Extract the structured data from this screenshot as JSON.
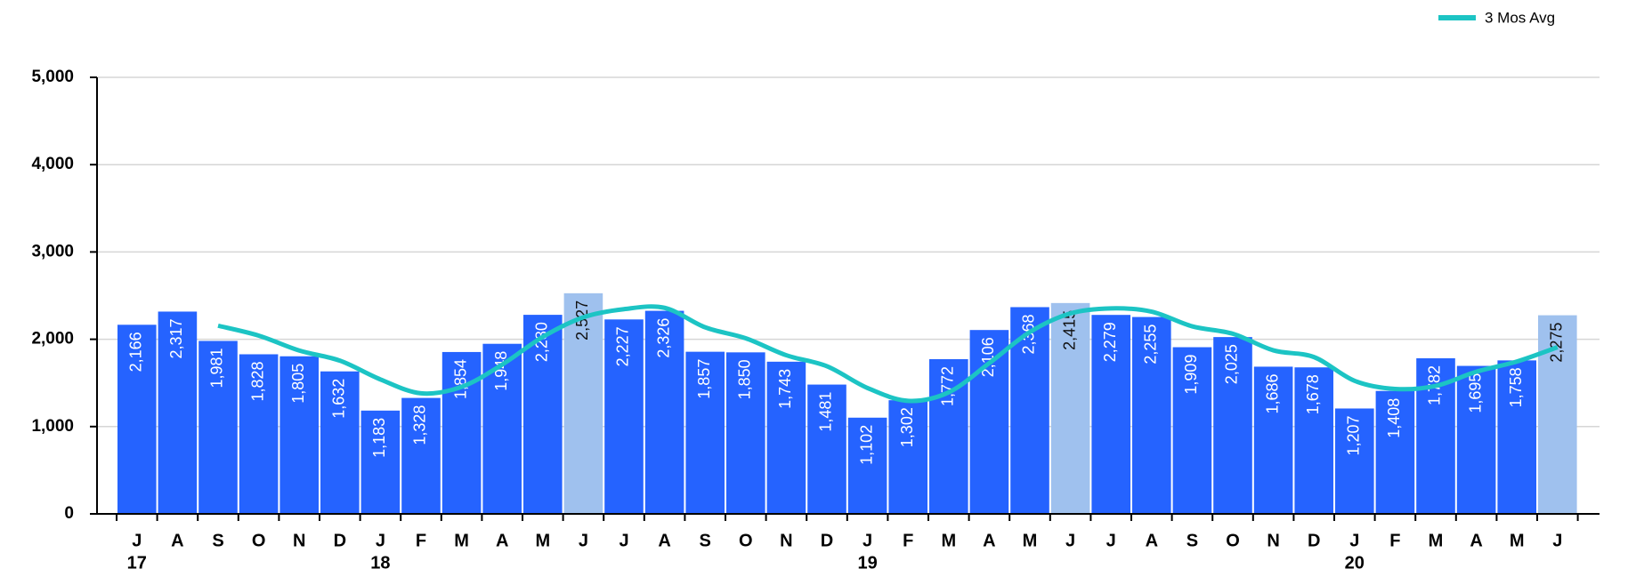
{
  "chart_data": {
    "type": "bar",
    "categories": [
      "J",
      "A",
      "S",
      "O",
      "N",
      "D",
      "J",
      "F",
      "M",
      "A",
      "M",
      "J",
      "J",
      "A",
      "S",
      "O",
      "N",
      "D",
      "J",
      "F",
      "M",
      "A",
      "M",
      "J",
      "J",
      "A",
      "S",
      "O",
      "N",
      "D",
      "J",
      "F",
      "M",
      "A",
      "M",
      "J"
    ],
    "year_labels": [
      "17",
      null,
      null,
      null,
      null,
      null,
      "18",
      null,
      null,
      null,
      null,
      null,
      null,
      null,
      null,
      null,
      null,
      null,
      "19",
      null,
      null,
      null,
      null,
      null,
      null,
      null,
      null,
      null,
      null,
      null,
      "20",
      null,
      null,
      null,
      null,
      null
    ],
    "values": [
      2166,
      2317,
      1981,
      1828,
      1805,
      1632,
      1183,
      1328,
      1854,
      1948,
      2280,
      2527,
      2227,
      2326,
      1857,
      1850,
      1743,
      1481,
      1102,
      1302,
      1772,
      2106,
      2368,
      2415,
      2279,
      2255,
      1909,
      2025,
      1686,
      1678,
      1207,
      1408,
      1782,
      1695,
      1758,
      2275
    ],
    "value_labels": [
      "2,166",
      "2,317",
      "1,981",
      "1,828",
      "1,805",
      "1,632",
      "1,183",
      "1,328",
      "1,854",
      "1,948",
      "2,280",
      "2,527",
      "2,227",
      "2,326",
      "1,857",
      "1,850",
      "1,743",
      "1,481",
      "1,102",
      "1,302",
      "1,772",
      "2,106",
      "2,368",
      "2,415",
      "2,279",
      "2,255",
      "1,909",
      "2,025",
      "1,686",
      "1,678",
      "1,207",
      "1,408",
      "1,782",
      "1,695",
      "1,758",
      "2,275"
    ],
    "color": "#2563ff",
    "highlight_color": "#9fc1ee",
    "highlight_indices": [
      11,
      23,
      35
    ],
    "line_series": {
      "name": "3 Mos Avg",
      "color": "#1cc4c4",
      "values": [
        null,
        null,
        2155,
        2042,
        1871,
        1755,
        1540,
        1381,
        1455,
        1710,
        2027,
        2252,
        2345,
        2360,
        2137,
        2011,
        1817,
        1691,
        1442,
        1295,
        1392,
        1727,
        2082,
        2296,
        2354,
        2316,
        2148,
        2063,
        1873,
        1796,
        1524,
        1431,
        1466,
        1628,
        1745,
        1909
      ]
    },
    "ylim": [
      0,
      5000
    ],
    "yticks": [
      0,
      {
        "value": 1000,
        "label": "1,000"
      },
      {
        "value": 2000,
        "label": "2,000"
      },
      {
        "value": 3000,
        "label": "3,000"
      },
      {
        "value": 4000,
        "label": "4,000"
      },
      {
        "value": 5000,
        "label": "5,000"
      }
    ],
    "grid": true
  }
}
